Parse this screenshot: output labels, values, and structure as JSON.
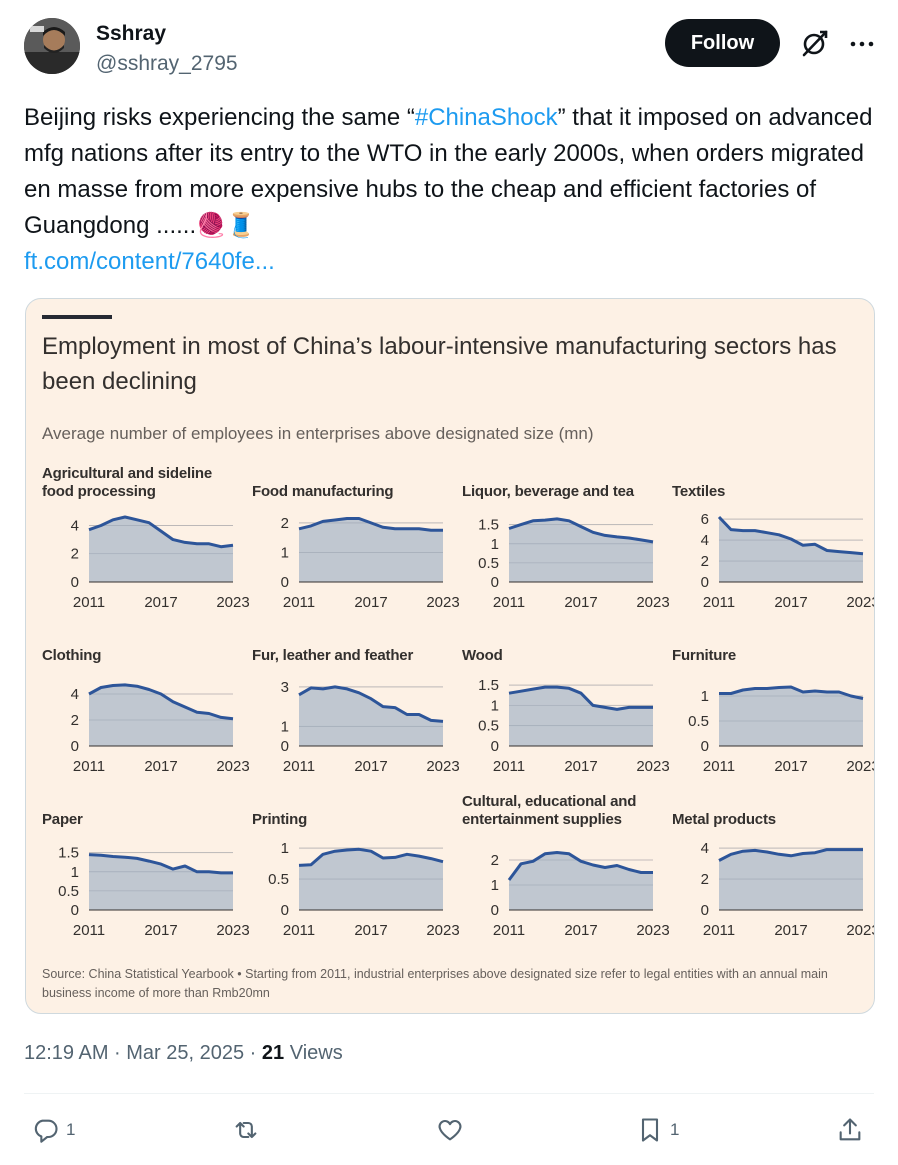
{
  "user": {
    "name": "Sshray",
    "handle": "@sshray_2795"
  },
  "follow_label": "Follow",
  "tweet": {
    "text_before": "Beijing risks experiencing the same “",
    "hashtag": "#ChinaShock",
    "text_after": "” that it imposed on advanced mfg nations after its entry to the WTO in the early 2000s, when orders migrated en masse from more expensive hubs to the cheap and efficient factories of Guangdong ......🧶🧵",
    "link": "ft.com/content/7640fe..."
  },
  "timestamp": {
    "time": "12:19 AM · Mar 25, 2025 · ",
    "views_count": "21",
    "views_label": " Views"
  },
  "actions": {
    "replies": "1",
    "reposts": "",
    "likes": "",
    "bookmarks": "1"
  },
  "icons": [
    "grok-icon",
    "more-icon",
    "reply-icon",
    "repost-icon",
    "like-icon",
    "bookmark-icon",
    "share-icon"
  ],
  "colors": {
    "card_bg": "#fdf1e5",
    "line": "#2d5599",
    "area": "#b5bfcd",
    "follow_bg": "#0f1419",
    "link": "#1d9bf0"
  },
  "chart_title": "Employment in most of China’s labour-intensive manufacturing sectors has been declining",
  "chart_subtitle": "Average number of employees in enterprises above designated size (mn)",
  "chart_source": "Source: China Statistical Yearbook • Starting from 2011, industrial enterprises above designated size refer to legal entities with an annual main business income of more than Rmb20mn",
  "chart_data": [
    {
      "type": "area",
      "title": "Agricultural and sideline food processing",
      "x": [
        2011,
        2012,
        2013,
        2014,
        2015,
        2016,
        2017,
        2018,
        2019,
        2020,
        2021,
        2022,
        2023
      ],
      "values": [
        3.7,
        4.0,
        4.4,
        4.6,
        4.4,
        4.2,
        3.6,
        3.0,
        2.8,
        2.7,
        2.7,
        2.5,
        2.6
      ],
      "ylim": [
        0,
        4.6
      ],
      "yticks": [
        "0",
        "2",
        "4"
      ],
      "ytick_values": [
        0,
        2,
        4
      ],
      "xticks": [
        "2011",
        "2017",
        "2023"
      ]
    },
    {
      "type": "area",
      "title": "Food manufacturing",
      "x": [
        2011,
        2012,
        2013,
        2014,
        2015,
        2016,
        2017,
        2018,
        2019,
        2020,
        2021,
        2022,
        2023
      ],
      "values": [
        1.8,
        1.9,
        2.05,
        2.1,
        2.15,
        2.15,
        2.0,
        1.85,
        1.8,
        1.8,
        1.8,
        1.75,
        1.75
      ],
      "ylim": [
        0,
        2.2
      ],
      "yticks": [
        "0",
        "1",
        "2"
      ],
      "ytick_values": [
        0,
        1,
        2
      ],
      "xticks": [
        "2011",
        "2017",
        "2023"
      ]
    },
    {
      "type": "area",
      "title": "Liquor, beverage and tea",
      "x": [
        2011,
        2012,
        2013,
        2014,
        2015,
        2016,
        2017,
        2018,
        2019,
        2020,
        2021,
        2022,
        2023
      ],
      "values": [
        1.4,
        1.5,
        1.6,
        1.62,
        1.65,
        1.6,
        1.45,
        1.3,
        1.22,
        1.18,
        1.15,
        1.1,
        1.05
      ],
      "ylim": [
        0,
        1.7
      ],
      "yticks": [
        "0",
        "0.5",
        "1",
        "1.5"
      ],
      "ytick_values": [
        0,
        0.5,
        1,
        1.5
      ],
      "xticks": [
        "2011",
        "2017",
        "2023"
      ]
    },
    {
      "type": "area",
      "title": "Textiles",
      "x": [
        2011,
        2012,
        2013,
        2014,
        2015,
        2016,
        2017,
        2018,
        2019,
        2020,
        2021,
        2022,
        2023
      ],
      "values": [
        6.2,
        5.0,
        4.9,
        4.9,
        4.7,
        4.5,
        4.1,
        3.5,
        3.6,
        3.0,
        2.9,
        2.8,
        2.7
      ],
      "ylim": [
        0,
        6.2
      ],
      "yticks": [
        "0",
        "2",
        "4",
        "6"
      ],
      "ytick_values": [
        0,
        2,
        4,
        6
      ],
      "xticks": [
        "2011",
        "2017",
        "2023"
      ]
    },
    {
      "type": "area",
      "title": "Clothing",
      "x": [
        2011,
        2012,
        2013,
        2014,
        2015,
        2016,
        2017,
        2018,
        2019,
        2020,
        2021,
        2022,
        2023
      ],
      "values": [
        4.0,
        4.5,
        4.65,
        4.7,
        4.6,
        4.35,
        4.0,
        3.4,
        3.0,
        2.6,
        2.5,
        2.2,
        2.1
      ],
      "ylim": [
        0,
        5.0
      ],
      "yticks": [
        "0",
        "2",
        "4"
      ],
      "ytick_values": [
        0,
        2,
        4
      ],
      "xticks": [
        "2011",
        "2017",
        "2023"
      ]
    },
    {
      "type": "area",
      "title": "Fur, leather and feather",
      "x": [
        2011,
        2012,
        2013,
        2014,
        2015,
        2016,
        2017,
        2018,
        2019,
        2020,
        2021,
        2022,
        2023
      ],
      "values": [
        2.6,
        2.95,
        2.9,
        3.0,
        2.9,
        2.7,
        2.4,
        2.0,
        1.95,
        1.6,
        1.6,
        1.3,
        1.25
      ],
      "ylim": [
        0,
        3.3
      ],
      "yticks": [
        "0",
        "1",
        "3"
      ],
      "ytick_values": [
        0,
        1,
        3
      ],
      "xticks": [
        "2011",
        "2017",
        "2023"
      ]
    },
    {
      "type": "area",
      "title": "Wood",
      "x": [
        2011,
        2012,
        2013,
        2014,
        2015,
        2016,
        2017,
        2018,
        2019,
        2020,
        2021,
        2022,
        2023
      ],
      "values": [
        1.3,
        1.35,
        1.4,
        1.45,
        1.45,
        1.42,
        1.3,
        1.0,
        0.95,
        0.9,
        0.95,
        0.95,
        0.95
      ],
      "ylim": [
        0,
        1.6
      ],
      "yticks": [
        "0",
        "0.5",
        "1",
        "1.5"
      ],
      "ytick_values": [
        0,
        0.5,
        1,
        1.5
      ],
      "xticks": [
        "2011",
        "2017",
        "2023"
      ]
    },
    {
      "type": "area",
      "title": "Furniture",
      "x": [
        2011,
        2012,
        2013,
        2014,
        2015,
        2016,
        2017,
        2018,
        2019,
        2020,
        2021,
        2022,
        2023
      ],
      "values": [
        1.05,
        1.05,
        1.12,
        1.15,
        1.15,
        1.17,
        1.18,
        1.08,
        1.1,
        1.08,
        1.08,
        1.0,
        0.95
      ],
      "ylim": [
        0,
        1.3
      ],
      "yticks": [
        "0",
        "0.5",
        "1"
      ],
      "ytick_values": [
        0,
        0.5,
        1
      ],
      "xticks": [
        "2011",
        "2017",
        "2023"
      ]
    },
    {
      "type": "area",
      "title": "Paper",
      "x": [
        2011,
        2012,
        2013,
        2014,
        2015,
        2016,
        2017,
        2018,
        2019,
        2020,
        2021,
        2022,
        2023
      ],
      "values": [
        1.45,
        1.43,
        1.4,
        1.38,
        1.35,
        1.28,
        1.2,
        1.07,
        1.15,
        1.0,
        1.0,
        0.97,
        0.97
      ],
      "ylim": [
        0,
        1.7
      ],
      "yticks": [
        "0",
        "0.5",
        "1",
        "1.5"
      ],
      "ytick_values": [
        0,
        0.5,
        1,
        1.5
      ],
      "xticks": [
        "2011",
        "2017",
        "2023"
      ]
    },
    {
      "type": "area",
      "title": "Printing",
      "x": [
        2011,
        2012,
        2013,
        2014,
        2015,
        2016,
        2017,
        2018,
        2019,
        2020,
        2021,
        2022,
        2023
      ],
      "values": [
        0.72,
        0.73,
        0.9,
        0.95,
        0.97,
        0.98,
        0.95,
        0.84,
        0.85,
        0.9,
        0.87,
        0.83,
        0.78
      ],
      "ylim": [
        0,
        1.05
      ],
      "yticks": [
        "0",
        "0.5",
        "1"
      ],
      "ytick_values": [
        0,
        0.5,
        1
      ],
      "xticks": [
        "2011",
        "2017",
        "2023"
      ]
    },
    {
      "type": "area",
      "title": "Cultural, educational and entertainment supplies",
      "x": [
        2011,
        2012,
        2013,
        2014,
        2015,
        2016,
        2017,
        2018,
        2019,
        2020,
        2021,
        2022,
        2023
      ],
      "values": [
        1.2,
        1.85,
        1.95,
        2.25,
        2.3,
        2.25,
        1.95,
        1.8,
        1.7,
        1.78,
        1.62,
        1.5,
        1.5
      ],
      "ylim": [
        0,
        2.6
      ],
      "yticks": [
        "0",
        "1",
        "2"
      ],
      "ytick_values": [
        0,
        1,
        2
      ],
      "xticks": [
        "2011",
        "2017",
        "2023"
      ]
    },
    {
      "type": "area",
      "title": "Metal products",
      "x": [
        2011,
        2012,
        2013,
        2014,
        2015,
        2016,
        2017,
        2018,
        2019,
        2020,
        2021,
        2022,
        2023
      ],
      "values": [
        3.2,
        3.6,
        3.8,
        3.85,
        3.75,
        3.6,
        3.5,
        3.65,
        3.7,
        3.9,
        3.9,
        3.9,
        3.9
      ],
      "ylim": [
        0,
        4.2
      ],
      "yticks": [
        "0",
        "2",
        "4"
      ],
      "ytick_values": [
        0,
        2,
        4
      ],
      "xticks": [
        "2011",
        "2017",
        "2023"
      ]
    }
  ]
}
